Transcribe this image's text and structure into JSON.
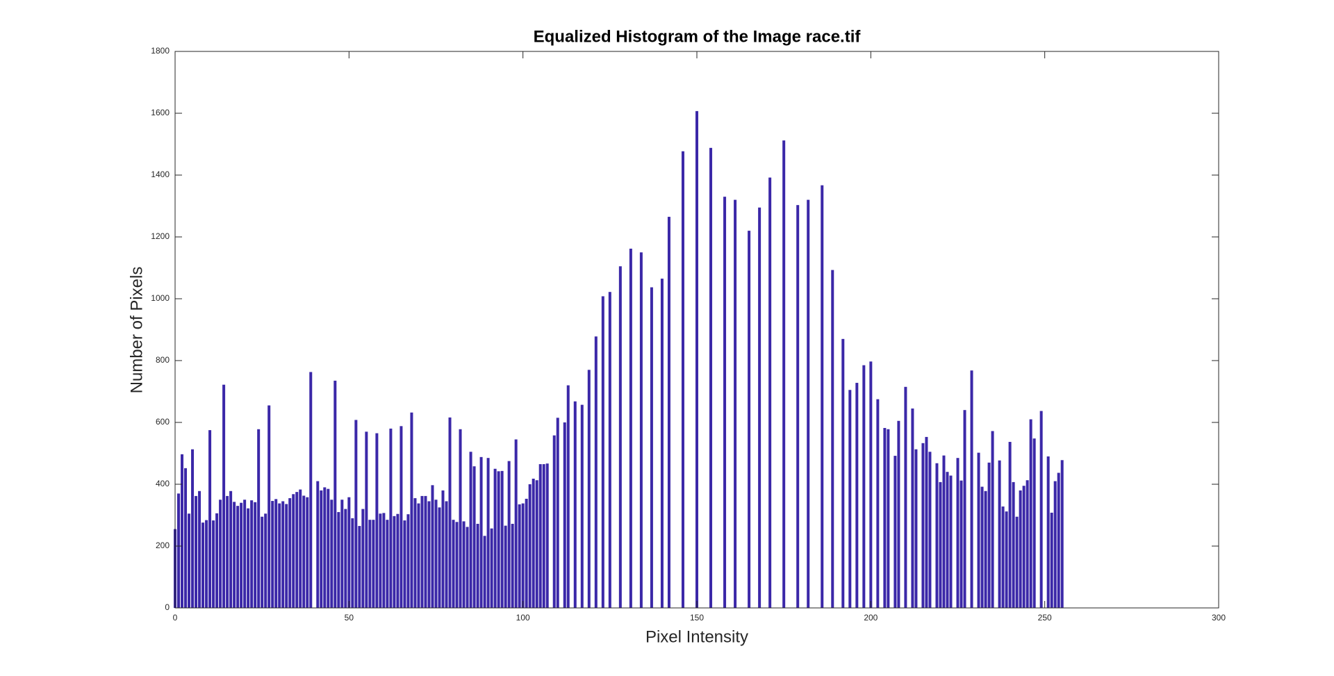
{
  "chart_data": {
    "type": "bar",
    "title": "Equalized Histogram of the Image race.tif",
    "x_label": "Pixel Intensity",
    "y_label": "Number of Pixels",
    "color": "#3b28a8",
    "x": [
      0,
      1,
      2,
      3,
      4,
      5,
      6,
      7,
      8,
      9,
      10,
      11,
      12,
      13,
      14,
      15,
      16,
      17,
      18,
      19,
      20,
      21,
      22,
      23,
      24,
      25,
      26,
      27,
      28,
      29,
      30,
      31,
      32,
      33,
      34,
      35,
      36,
      37,
      38,
      39,
      41,
      42,
      43,
      44,
      45,
      46,
      47,
      48,
      49,
      50,
      51,
      52,
      53,
      54,
      55,
      56,
      57,
      58,
      59,
      60,
      61,
      62,
      63,
      64,
      65,
      66,
      67,
      68,
      69,
      70,
      71,
      72,
      73,
      74,
      75,
      76,
      77,
      78,
      79,
      80,
      81,
      82,
      83,
      84,
      85,
      86,
      87,
      88,
      89,
      90,
      91,
      92,
      93,
      94,
      95,
      96,
      97,
      98,
      99,
      100,
      101,
      102,
      103,
      104,
      105,
      106,
      107,
      109,
      110,
      112,
      113,
      115,
      117,
      119,
      121,
      123,
      125,
      128,
      131,
      134,
      137,
      140,
      142,
      146,
      150,
      154,
      158,
      161,
      165,
      168,
      171,
      175,
      179,
      182,
      186,
      189,
      192,
      194,
      196,
      198,
      200,
      202,
      204,
      205,
      207,
      208,
      210,
      212,
      213,
      215,
      216,
      217,
      219,
      220,
      221,
      222,
      223,
      225,
      226,
      227,
      229,
      231,
      232,
      233,
      234,
      235,
      237,
      238,
      239,
      240,
      241,
      242,
      243,
      244,
      245,
      246,
      247,
      249,
      251,
      252,
      253,
      254,
      255
    ],
    "values": [
      255,
      370,
      497,
      452,
      305,
      513,
      362,
      378,
      276,
      284,
      575,
      283,
      306,
      350,
      722,
      362,
      378,
      343,
      330,
      340,
      350,
      322,
      348,
      342,
      578,
      295,
      305,
      655,
      346,
      352,
      338,
      345,
      336,
      355,
      368,
      375,
      383,
      363,
      358,
      763,
      410,
      380,
      390,
      385,
      350,
      735,
      310,
      350,
      320,
      358,
      290,
      608,
      265,
      320,
      570,
      285,
      285,
      565,
      305,
      307,
      285,
      580,
      297,
      304,
      588,
      283,
      303,
      632,
      355,
      338,
      362,
      362,
      345,
      397,
      350,
      325,
      380,
      345,
      616,
      285,
      278,
      578,
      280,
      262,
      505,
      458,
      272,
      488,
      233,
      485,
      257,
      450,
      442,
      443,
      266,
      475,
      272,
      545,
      335,
      338,
      353,
      400,
      418,
      413,
      465,
      465,
      467,
      558,
      615,
      600,
      720,
      668,
      657,
      770,
      878,
      1008,
      1022,
      1105,
      1162,
      1150,
      1037,
      1065,
      1265,
      1477,
      1607,
      1488,
      1330,
      1320,
      1220,
      1295,
      1392,
      1512,
      1303,
      1320,
      1367,
      1093,
      870,
      705,
      728,
      785,
      797,
      675,
      582,
      578,
      492,
      605,
      715,
      645,
      513,
      533,
      553,
      505,
      468,
      407,
      493,
      440,
      428,
      485,
      412,
      640,
      768,
      502,
      392,
      378,
      470,
      572,
      477,
      328,
      312,
      537,
      407,
      295,
      380,
      395,
      413,
      610,
      548,
      637,
      490,
      308,
      410,
      437,
      478
    ],
    "xlim": [
      0,
      300
    ],
    "ylim": [
      0,
      1800
    ],
    "xticks": [
      0,
      50,
      100,
      150,
      200,
      250,
      300
    ],
    "yticks": [
      0,
      200,
      400,
      600,
      800,
      1000,
      1200,
      1400,
      1600,
      1800
    ]
  }
}
